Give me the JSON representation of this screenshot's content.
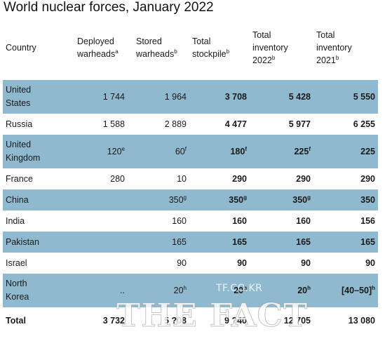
{
  "title": "World nuclear forces, January 2022",
  "headers": [
    {
      "lines": [
        "Country"
      ],
      "sup": ""
    },
    {
      "lines": [
        "Deployed",
        "warheads"
      ],
      "sup": "a"
    },
    {
      "lines": [
        "Stored",
        "warheads"
      ],
      "sup": "b"
    },
    {
      "lines": [
        "Total",
        "stockpile"
      ],
      "sup": "b"
    },
    {
      "lines": [
        "Total",
        "inventory",
        "2022"
      ],
      "sup": "b"
    },
    {
      "lines": [
        "Total",
        "inventory",
        "2021"
      ],
      "sup": "b"
    }
  ],
  "rows": [
    {
      "country": [
        "United",
        "States"
      ],
      "deployed": "1 744",
      "deployed_sup": "",
      "stored": "1 964",
      "stored_sup": "",
      "stockpile": "3 708",
      "stockpile_sup": "",
      "inv2022": "5 428",
      "inv2022_sup": "",
      "inv2021": "5 550",
      "inv2021_sup": ""
    },
    {
      "country": [
        "Russia"
      ],
      "deployed": "1 588",
      "deployed_sup": "",
      "stored": "2 889",
      "stored_sup": "",
      "stockpile": "4 477",
      "stockpile_sup": "",
      "inv2022": "5 977",
      "inv2022_sup": "",
      "inv2021": "6 255",
      "inv2021_sup": ""
    },
    {
      "country": [
        "United",
        "Kingdom"
      ],
      "deployed": "120",
      "deployed_sup": "e",
      "stored": "60",
      "stored_sup": "f",
      "stockpile": "180",
      "stockpile_sup": "f",
      "inv2022": "225",
      "inv2022_sup": "f",
      "inv2021": "225",
      "inv2021_sup": ""
    },
    {
      "country": [
        "France"
      ],
      "deployed": "280",
      "deployed_sup": "",
      "stored": "10",
      "stored_sup": "",
      "stockpile": "290",
      "stockpile_sup": "",
      "inv2022": "290",
      "inv2022_sup": "",
      "inv2021": "290",
      "inv2021_sup": ""
    },
    {
      "country": [
        "China"
      ],
      "deployed": "",
      "deployed_sup": "",
      "stored": "350",
      "stored_sup": "g",
      "stockpile": "350",
      "stockpile_sup": "g",
      "inv2022": "350",
      "inv2022_sup": "g",
      "inv2021": "350",
      "inv2021_sup": ""
    },
    {
      "country": [
        "India"
      ],
      "deployed": "",
      "deployed_sup": "",
      "stored": "160",
      "stored_sup": "",
      "stockpile": "160",
      "stockpile_sup": "",
      "inv2022": "160",
      "inv2022_sup": "",
      "inv2021": "156",
      "inv2021_sup": ""
    },
    {
      "country": [
        "Pakistan"
      ],
      "deployed": "",
      "deployed_sup": "",
      "stored": "165",
      "stored_sup": "",
      "stockpile": "165",
      "stockpile_sup": "",
      "inv2022": "165",
      "inv2022_sup": "",
      "inv2021": "165",
      "inv2021_sup": ""
    },
    {
      "country": [
        "Israel"
      ],
      "deployed": "",
      "deployed_sup": "",
      "stored": "90",
      "stored_sup": "",
      "stockpile": "90",
      "stockpile_sup": "",
      "inv2022": "90",
      "inv2022_sup": "",
      "inv2021": "90",
      "inv2021_sup": ""
    },
    {
      "country": [
        "North",
        "Korea"
      ],
      "deployed": "..",
      "deployed_sup": "",
      "stored": "20",
      "stored_sup": "h",
      "stockpile": "20",
      "stockpile_sup": "h",
      "inv2022": "20",
      "inv2022_sup": "h",
      "inv2021": "[40–50]",
      "inv2021_sup": "h"
    }
  ],
  "total": {
    "label": "Total",
    "deployed": "3 732",
    "stored": "5 ?08",
    "stockpile": "9 ?40",
    "inv2022": "12 705",
    "inv2021": "13 080"
  },
  "watermark": {
    "small": "TF.CO.KR",
    "big": "THE FACT"
  }
}
